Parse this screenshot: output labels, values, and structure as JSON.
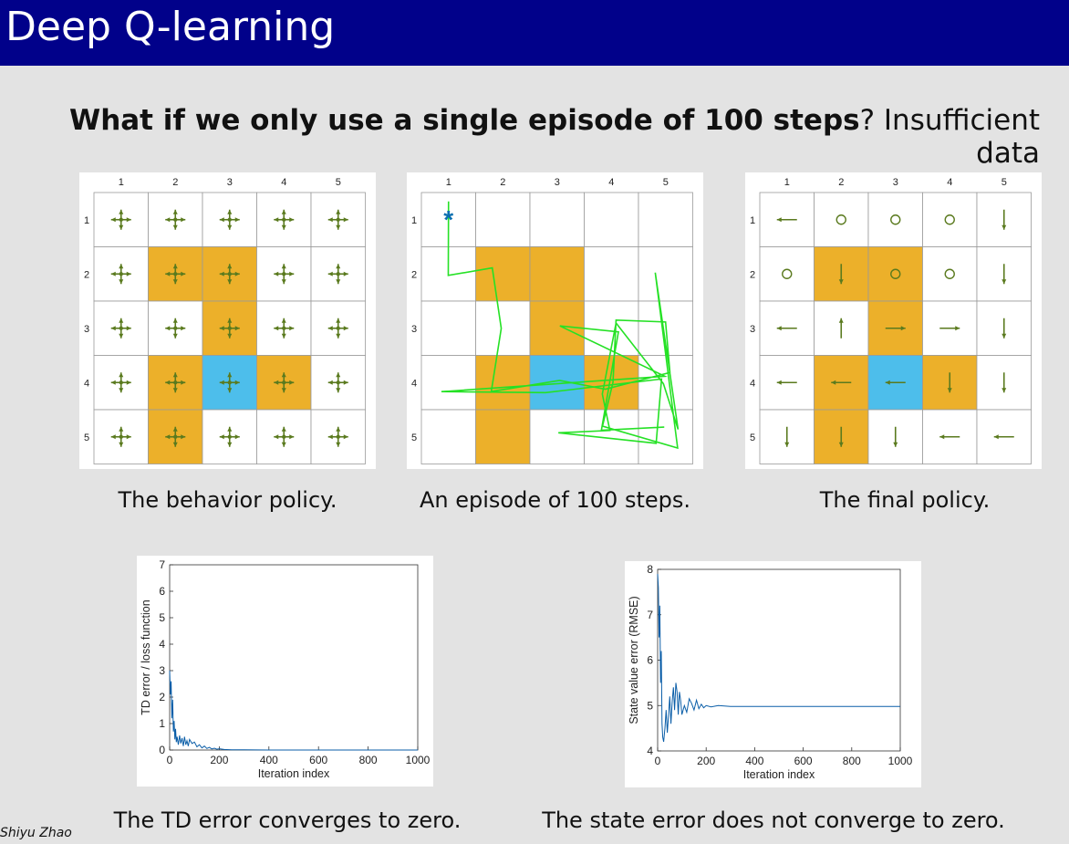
{
  "slide": {
    "title": "Deep Q-learning",
    "headline_bold": "What if we only use a single episode of 100 steps",
    "headline_rest": "? Insufficient data",
    "author": "Shiyu Zhao"
  },
  "colors": {
    "title_bar": "#01018a",
    "forbidden_cell": "#ecb02a",
    "target_cell": "#4dbeeb",
    "arrow": "#5a7a1e",
    "trajectory": "#25e125",
    "start_marker": "#0a6fb0",
    "curve": "#0b5ea8"
  },
  "grid": {
    "col_labels": [
      "1",
      "2",
      "3",
      "4",
      "5"
    ],
    "row_labels": [
      "1",
      "2",
      "3",
      "4",
      "5"
    ],
    "forbidden": [
      [
        2,
        2
      ],
      [
        2,
        3
      ],
      [
        3,
        3
      ],
      [
        4,
        2
      ],
      [
        4,
        4
      ],
      [
        5,
        2
      ]
    ],
    "target": [
      [
        4,
        3
      ]
    ]
  },
  "panels": {
    "behavior": {
      "caption": "The behavior policy.",
      "description": "uniform random policy: every cell shows arrows in all four directions plus a dot"
    },
    "episode": {
      "caption": "An episode of 100 steps.",
      "start_cell": [
        1,
        1
      ],
      "start_marker_icon": "asterisk-icon",
      "path": [
        [
          1,
          1
        ],
        [
          2,
          1
        ],
        [
          2,
          2
        ],
        [
          3,
          2
        ],
        [
          4,
          2
        ],
        [
          4,
          3
        ],
        [
          4,
          4
        ],
        [
          4,
          5
        ],
        [
          3,
          5
        ],
        [
          3,
          4
        ],
        [
          4,
          4
        ],
        [
          5,
          4
        ],
        [
          5,
          5
        ],
        [
          2,
          5
        ],
        [
          5,
          5
        ],
        [
          4,
          5
        ],
        [
          3,
          4
        ],
        [
          4,
          4
        ],
        [
          5,
          4
        ],
        [
          5,
          3
        ],
        [
          5,
          5
        ],
        [
          4,
          5
        ],
        [
          4,
          3
        ],
        [
          4,
          1
        ],
        [
          4,
          5
        ],
        [
          3,
          3
        ],
        [
          3,
          4
        ],
        [
          5,
          4
        ],
        [
          5,
          5
        ]
      ]
    },
    "final": {
      "caption": "The final policy.",
      "policy": [
        [
          "left",
          "stay",
          "stay",
          "stay",
          "down"
        ],
        [
          "stay",
          "down",
          "stay",
          "stay",
          "down"
        ],
        [
          "left",
          "up",
          "right",
          "right",
          "down"
        ],
        [
          "left",
          "left",
          "left",
          "down",
          "down"
        ],
        [
          "down",
          "down",
          "down",
          "left",
          "left"
        ]
      ]
    }
  },
  "chart_data": [
    {
      "type": "line",
      "xlabel": "Iteration index",
      "ylabel": "TD error / loss function",
      "xlim": [
        0,
        1000
      ],
      "ylim": [
        0,
        7
      ],
      "xticks": [
        0,
        200,
        400,
        600,
        800,
        1000
      ],
      "yticks": [
        0,
        1,
        2,
        3,
        4,
        5,
        6,
        7
      ],
      "grid": false,
      "series": [
        {
          "x": [
            0,
            3,
            6,
            9,
            12,
            15,
            18,
            21,
            24,
            27,
            30,
            35,
            40,
            45,
            50,
            55,
            60,
            65,
            70,
            75,
            80,
            90,
            100,
            110,
            120,
            130,
            140,
            150,
            160,
            170,
            180,
            190,
            200,
            220,
            250,
            300,
            400,
            500,
            600,
            700,
            800,
            900,
            1000
          ],
          "values": [
            3.0,
            2.1,
            2.6,
            1.2,
            1.9,
            0.7,
            1.1,
            0.4,
            0.8,
            0.3,
            0.5,
            0.2,
            0.55,
            0.25,
            0.45,
            0.15,
            0.5,
            0.2,
            0.35,
            0.15,
            0.4,
            0.25,
            0.3,
            0.12,
            0.2,
            0.08,
            0.15,
            0.06,
            0.1,
            0.04,
            0.07,
            0.03,
            0.05,
            0.02,
            0.01,
            0.01,
            0.0,
            0.0,
            0.0,
            0.0,
            0.0,
            0.0,
            0.0
          ]
        }
      ],
      "caption": "The TD error converges to zero."
    },
    {
      "type": "line",
      "xlabel": "Iteration index",
      "ylabel": "State value error (RMSE)",
      "xlim": [
        0,
        1000
      ],
      "ylim": [
        4,
        8
      ],
      "xticks": [
        0,
        200,
        400,
        600,
        800,
        1000
      ],
      "yticks": [
        4,
        5,
        6,
        7,
        8
      ],
      "grid": false,
      "series": [
        {
          "x": [
            0,
            3,
            6,
            9,
            12,
            15,
            18,
            21,
            25,
            30,
            35,
            40,
            45,
            50,
            55,
            60,
            65,
            70,
            75,
            80,
            85,
            90,
            95,
            100,
            110,
            120,
            130,
            140,
            150,
            160,
            170,
            180,
            190,
            200,
            220,
            250,
            300,
            400,
            500,
            600,
            700,
            800,
            900,
            1000
          ],
          "values": [
            7.9,
            7.6,
            6.5,
            7.2,
            5.5,
            6.2,
            4.6,
            4.3,
            4.2,
            4.5,
            4.9,
            4.4,
            4.8,
            5.2,
            4.6,
            5.1,
            5.4,
            4.9,
            5.5,
            5.3,
            4.8,
            5.3,
            5.1,
            4.8,
            5.0,
            4.85,
            5.15,
            5.05,
            4.9,
            5.12,
            4.93,
            5.03,
            4.95,
            5.0,
            4.97,
            5.0,
            4.98,
            4.98,
            4.98,
            4.98,
            4.98,
            4.98,
            4.98,
            4.98
          ]
        }
      ],
      "caption": "The state error does not converge to zero."
    }
  ]
}
